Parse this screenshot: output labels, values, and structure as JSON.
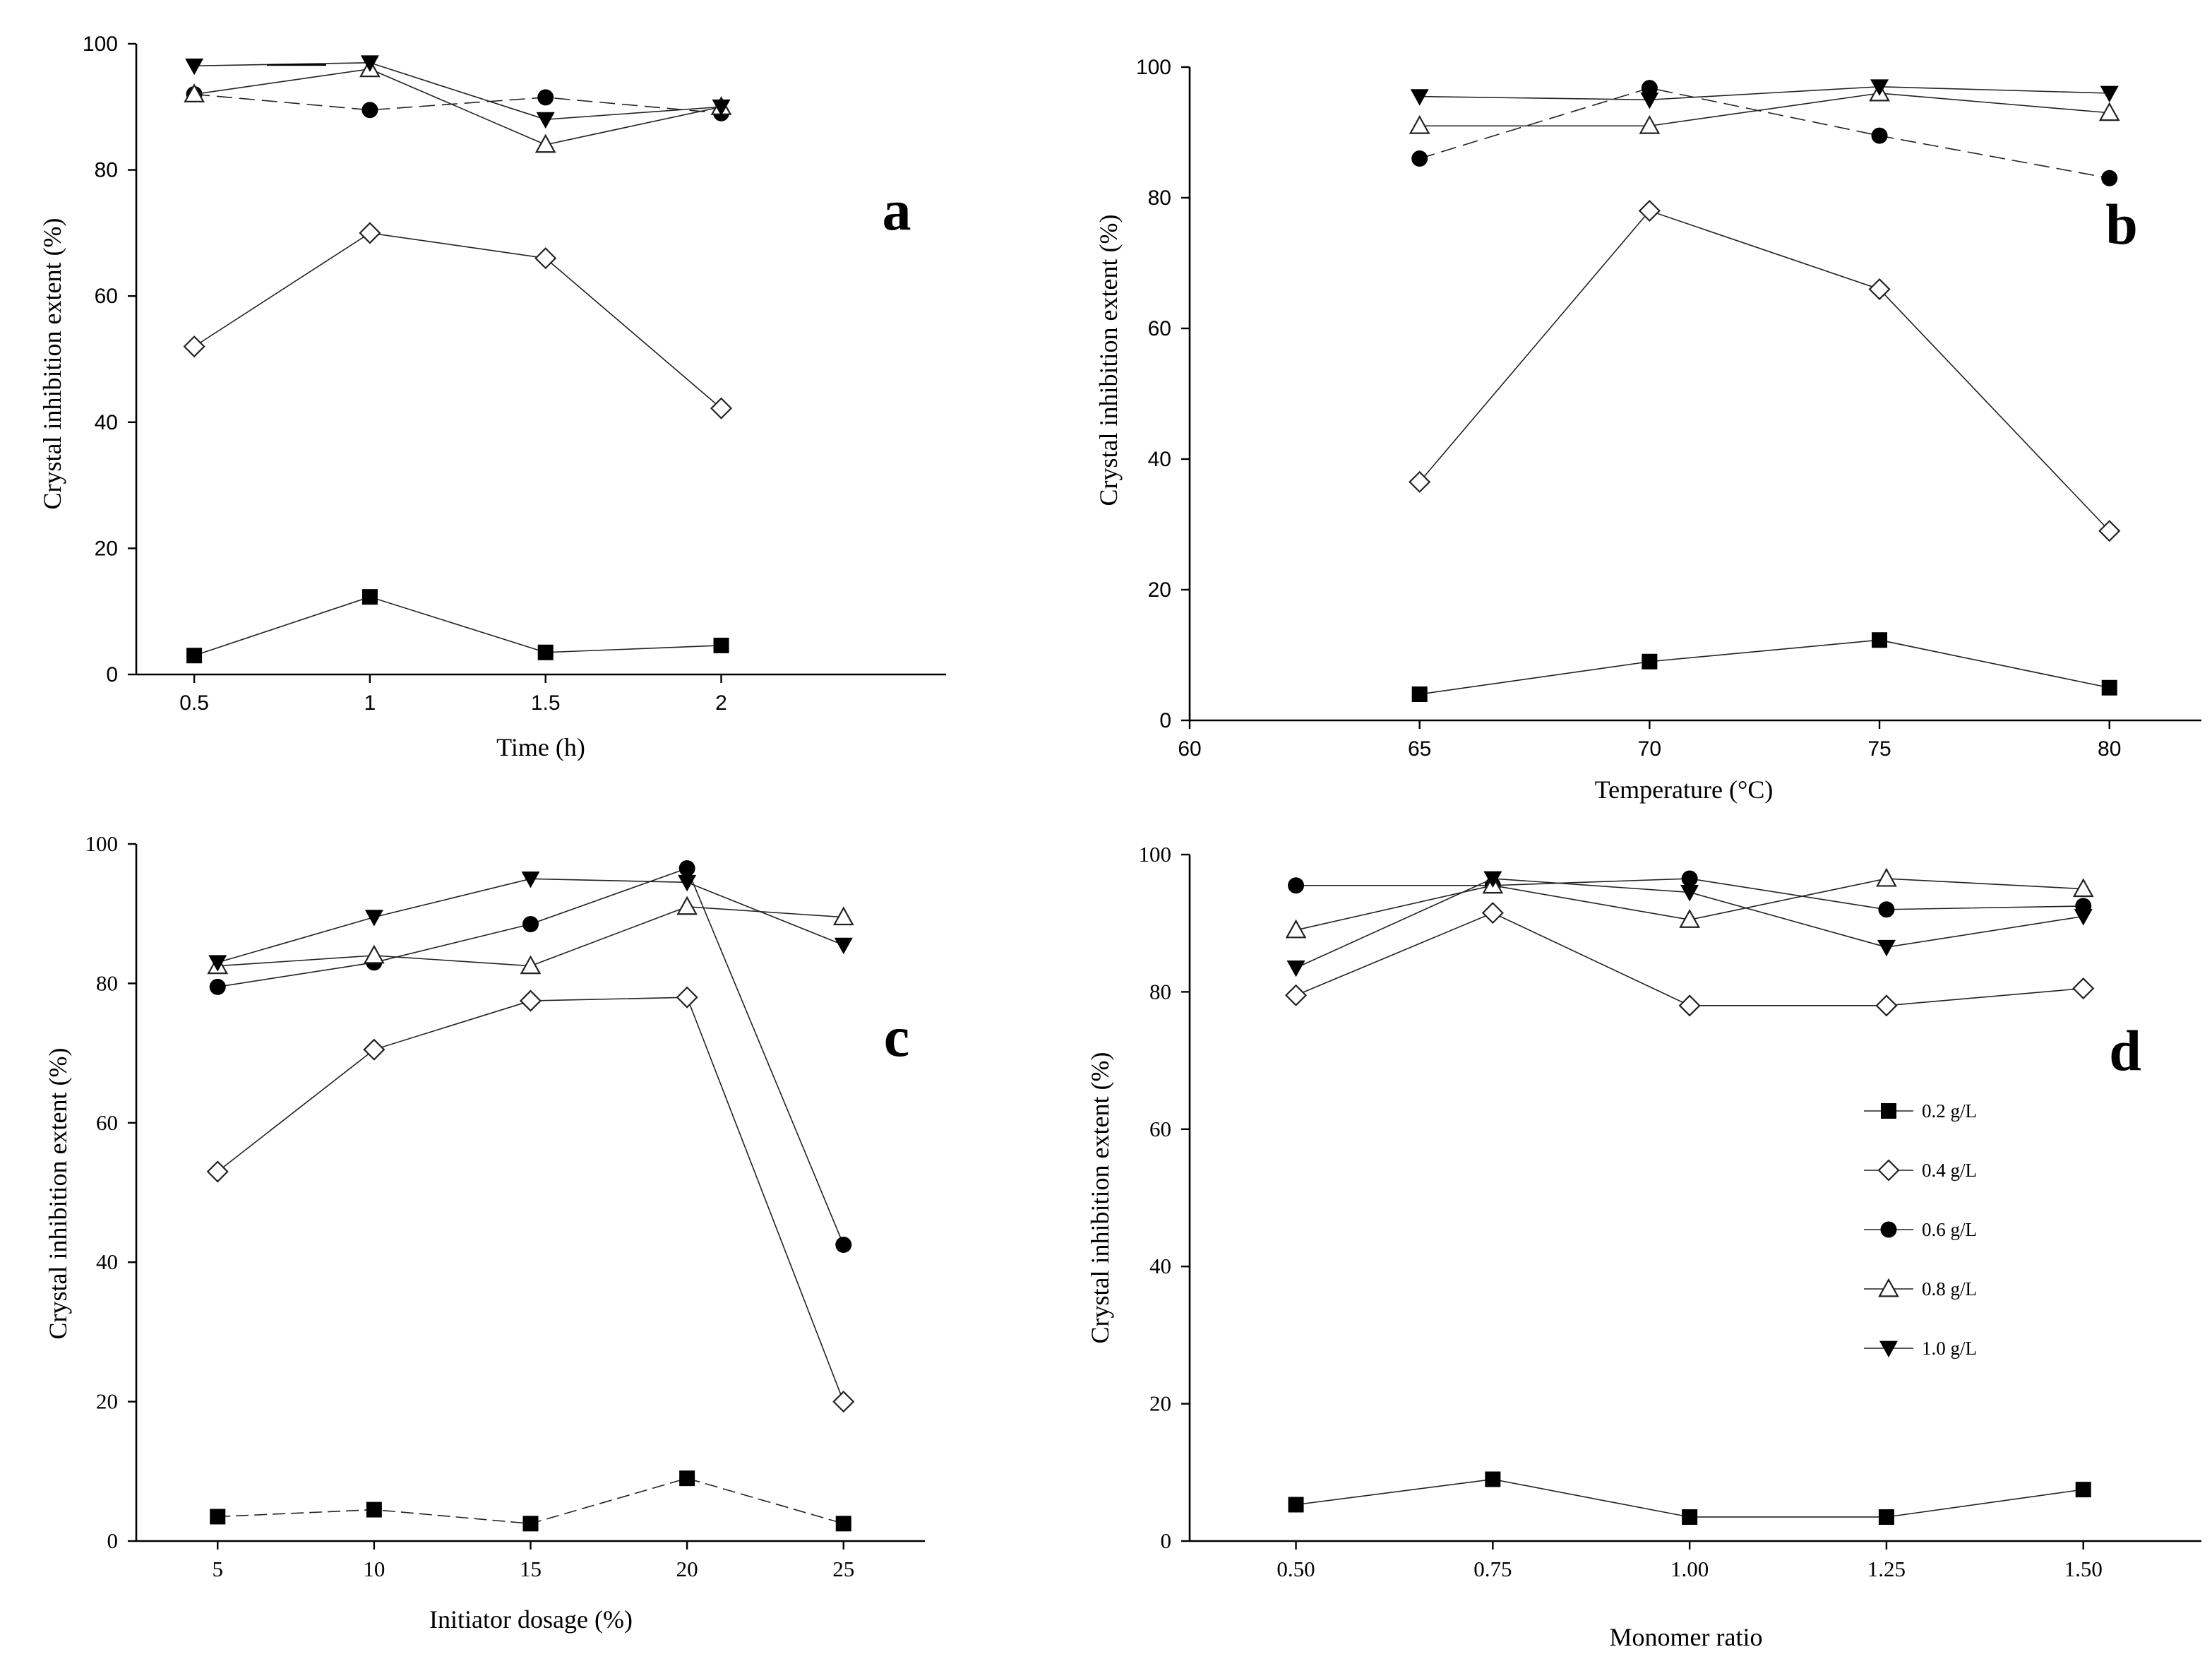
{
  "chart_data": [
    {
      "type": "line",
      "panel_label": "a",
      "title": "",
      "xlabel": "Time (h)",
      "ylabel": "Crystal inhibition extent (%)",
      "x": [
        0.5,
        1,
        1.5,
        2
      ],
      "x_tick_labels": [
        "0.5",
        "1",
        "1.5",
        "2"
      ],
      "xlim": [
        0.335,
        2.64
      ],
      "ylim": [
        0,
        100
      ],
      "y_ticks": [
        0,
        20,
        40,
        60,
        80,
        100
      ],
      "y_tick_labels": [
        "0",
        "20",
        "40",
        "60",
        "80",
        "100"
      ],
      "series": [
        {
          "name": "0.2 g/L",
          "values": [
            3,
            12.3,
            3.5,
            4.6
          ]
        },
        {
          "name": "0.4 g/L",
          "values": [
            52,
            70,
            66,
            42.2
          ]
        },
        {
          "name": "0.6 g/L",
          "values": [
            92,
            89.5,
            91.5,
            89
          ]
        },
        {
          "name": "0.8 g/L",
          "values": [
            92,
            96,
            84,
            90
          ]
        },
        {
          "name": "1.0 g/L",
          "values": [
            96.5,
            97,
            88,
            90
          ]
        }
      ]
    },
    {
      "type": "line",
      "panel_label": "b",
      "title": "",
      "xlabel": "Temperature (°C)",
      "ylabel": "Crystal inhibition extent (%)",
      "x": [
        65,
        70,
        75,
        80
      ],
      "x_tick_labels": [
        "60",
        "65",
        "70",
        "75",
        "80"
      ],
      "x_ticks": [
        60,
        65,
        70,
        75,
        80
      ],
      "xlim": [
        60,
        82
      ],
      "ylim": [
        0,
        100
      ],
      "y_ticks": [
        0,
        20,
        40,
        60,
        80,
        100
      ],
      "y_tick_labels": [
        "0",
        "20",
        "40",
        "60",
        "80",
        "100"
      ],
      "series": [
        {
          "name": "0.2 g/L",
          "values": [
            4,
            9,
            12.3,
            5
          ]
        },
        {
          "name": "0.4 g/L",
          "values": [
            36.5,
            78,
            66,
            29
          ]
        },
        {
          "name": "0.6 g/L",
          "values": [
            86,
            96.8,
            89.5,
            83
          ]
        },
        {
          "name": "0.8 g/L",
          "values": [
            91,
            91,
            96,
            93
          ]
        },
        {
          "name": "1.0 g/L",
          "values": [
            95.5,
            95,
            97,
            96
          ]
        }
      ]
    },
    {
      "type": "line",
      "panel_label": "c",
      "title": "",
      "xlabel": "Initiator dosage (%)",
      "ylabel": "Crystal inhibition extent (%)",
      "x": [
        5,
        10,
        15,
        20,
        25
      ],
      "x_tick_labels": [
        "5",
        "10",
        "15",
        "20",
        "25"
      ],
      "xlim": [
        2.4,
        27.6
      ],
      "ylim": [
        0,
        100
      ],
      "y_ticks": [
        0,
        20,
        40,
        60,
        80,
        100
      ],
      "y_tick_labels": [
        "0",
        "20",
        "40",
        "60",
        "80",
        "100"
      ],
      "series": [
        {
          "name": "0.2 g/L",
          "values": [
            3.5,
            4.5,
            2.5,
            9,
            2.5
          ]
        },
        {
          "name": "0.4 g/L",
          "values": [
            53,
            70.5,
            77.5,
            78,
            20
          ]
        },
        {
          "name": "0.6 g/L",
          "values": [
            79.5,
            83,
            88.5,
            96.5,
            42.5
          ]
        },
        {
          "name": "0.8 g/L",
          "values": [
            82.5,
            84,
            82.5,
            91,
            89.5
          ]
        },
        {
          "name": "1.0 g/L",
          "values": [
            83,
            89.5,
            95,
            94.5,
            85.5
          ]
        }
      ]
    },
    {
      "type": "line",
      "panel_label": "d",
      "title": "",
      "xlabel": "Monomer ratio",
      "ylabel": "Crystal inhibition extent (%)",
      "x": [
        0.5,
        0.75,
        1.0,
        1.25,
        1.5
      ],
      "x_tick_labels": [
        "0.50",
        "0.75",
        "1.00",
        "1.25",
        "1.50"
      ],
      "xlim": [
        0.365,
        1.65
      ],
      "ylim": [
        0,
        100
      ],
      "y_ticks": [
        0,
        20,
        40,
        60,
        80,
        100
      ],
      "y_tick_labels": [
        "0",
        "20",
        "40",
        "60",
        "80",
        "100"
      ],
      "legend_position": "center-right",
      "series": [
        {
          "name": "0.2 g/L",
          "values": [
            5.3,
            9,
            3.5,
            3.5,
            7.5
          ]
        },
        {
          "name": "0.4 g/L",
          "values": [
            79.5,
            91.5,
            78,
            78,
            80.5
          ]
        },
        {
          "name": "0.6 g/L",
          "values": [
            95.5,
            95.5,
            96.5,
            92,
            92.5
          ]
        },
        {
          "name": "0.8 g/L",
          "values": [
            89,
            95.5,
            90.5,
            96.5,
            95
          ]
        },
        {
          "name": "1.0 g/L",
          "values": [
            83.5,
            96.5,
            94.5,
            86.5,
            91
          ]
        }
      ]
    }
  ],
  "legend": {
    "entries": [
      "0.2 g/L",
      "0.4 g/L",
      "0.6 g/L",
      "0.8 g/L",
      "1.0 g/L"
    ]
  }
}
